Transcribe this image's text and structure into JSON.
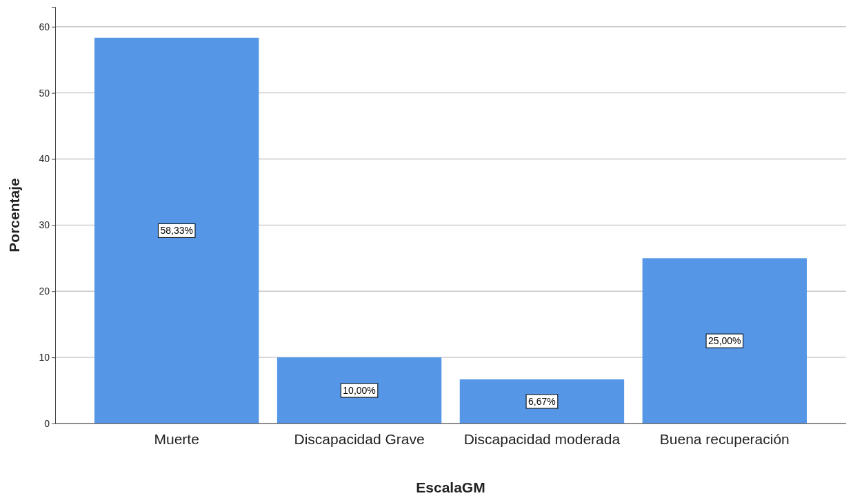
{
  "chart_data": {
    "type": "bar",
    "xlabel": "EscalaGM",
    "ylabel": "Porcentaje",
    "categories": [
      "Muerte",
      "Discapacidad Grave",
      "Discapacidad moderada",
      "Buena recuperación"
    ],
    "values": [
      58.33,
      10,
      6.67,
      25
    ],
    "value_labels": [
      "58,33%",
      "10,00%",
      "6,67%",
      "25,00%"
    ],
    "color": "#5596e6",
    "ylim": [
      0,
      63
    ],
    "yticks": [
      0,
      10,
      20,
      30,
      40,
      50,
      60
    ],
    "grid": "y"
  }
}
